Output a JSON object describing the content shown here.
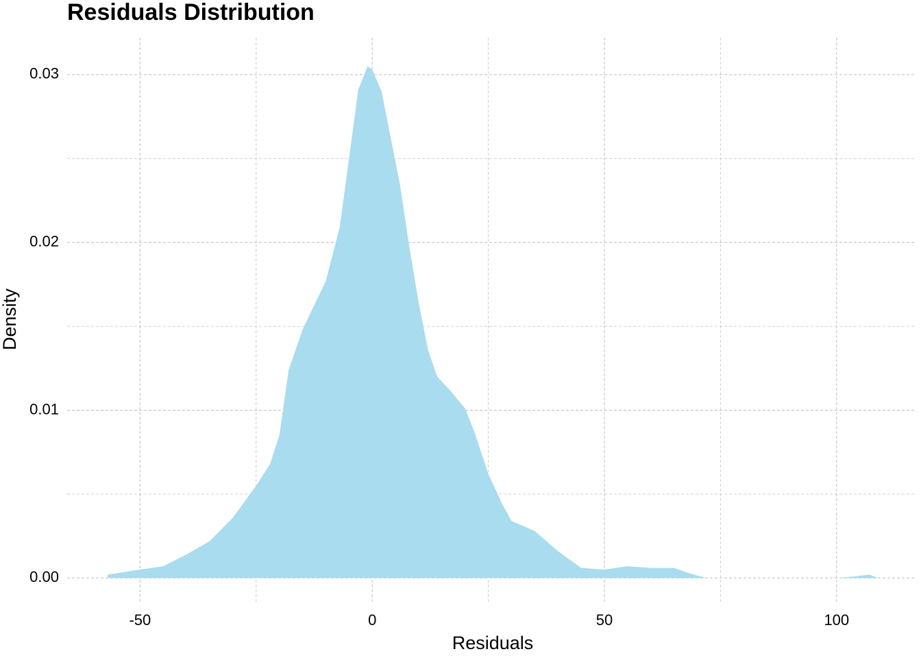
{
  "chart_data": {
    "type": "area",
    "title": "Residuals Distribution",
    "x_label": "Residuals",
    "y_label": "Density",
    "color": "#a8dcee",
    "grid": true,
    "grid_style": "dashed",
    "xlim": [
      -65.7,
      117
    ],
    "ylim": [
      -0.0015,
      0.0322
    ],
    "xticks": [
      -50,
      0,
      50,
      100
    ],
    "yticks": [
      {
        "value": 0,
        "label": "0.00"
      },
      {
        "value": 0.01,
        "label": "0.01"
      },
      {
        "value": 0.02,
        "label": "0.02"
      },
      {
        "value": 0.03,
        "label": "0.03"
      }
    ],
    "xminorticks": [
      -25,
      25,
      75
    ],
    "yminorticks": [
      0.005,
      0.015,
      0.025
    ],
    "x": [
      -57,
      -50,
      -45,
      -40,
      -35,
      -30,
      -25,
      -22,
      -20,
      -18,
      -15,
      -10,
      -7,
      -5,
      -3,
      -1,
      0,
      2,
      4,
      6,
      8,
      10,
      12,
      14,
      17,
      20,
      22,
      25,
      28,
      30,
      35,
      40,
      45,
      50,
      55,
      60,
      65,
      68,
      72,
      100,
      104,
      107,
      109
    ],
    "values": [
      0.0002,
      0.0005,
      0.0007,
      0.0014,
      0.0022,
      0.0036,
      0.0055,
      0.0068,
      0.0085,
      0.0124,
      0.0148,
      0.0177,
      0.0209,
      0.025,
      0.0291,
      0.0305,
      0.0303,
      0.029,
      0.0262,
      0.0234,
      0.0197,
      0.0164,
      0.0136,
      0.012,
      0.0111,
      0.0101,
      0.0087,
      0.0062,
      0.0044,
      0.0034,
      0.0028,
      0.0016,
      0.0006,
      0.0005,
      0.0007,
      0.0006,
      0.0006,
      0.0003,
      0,
      0,
      0.0001,
      0.0002,
      0
    ]
  }
}
